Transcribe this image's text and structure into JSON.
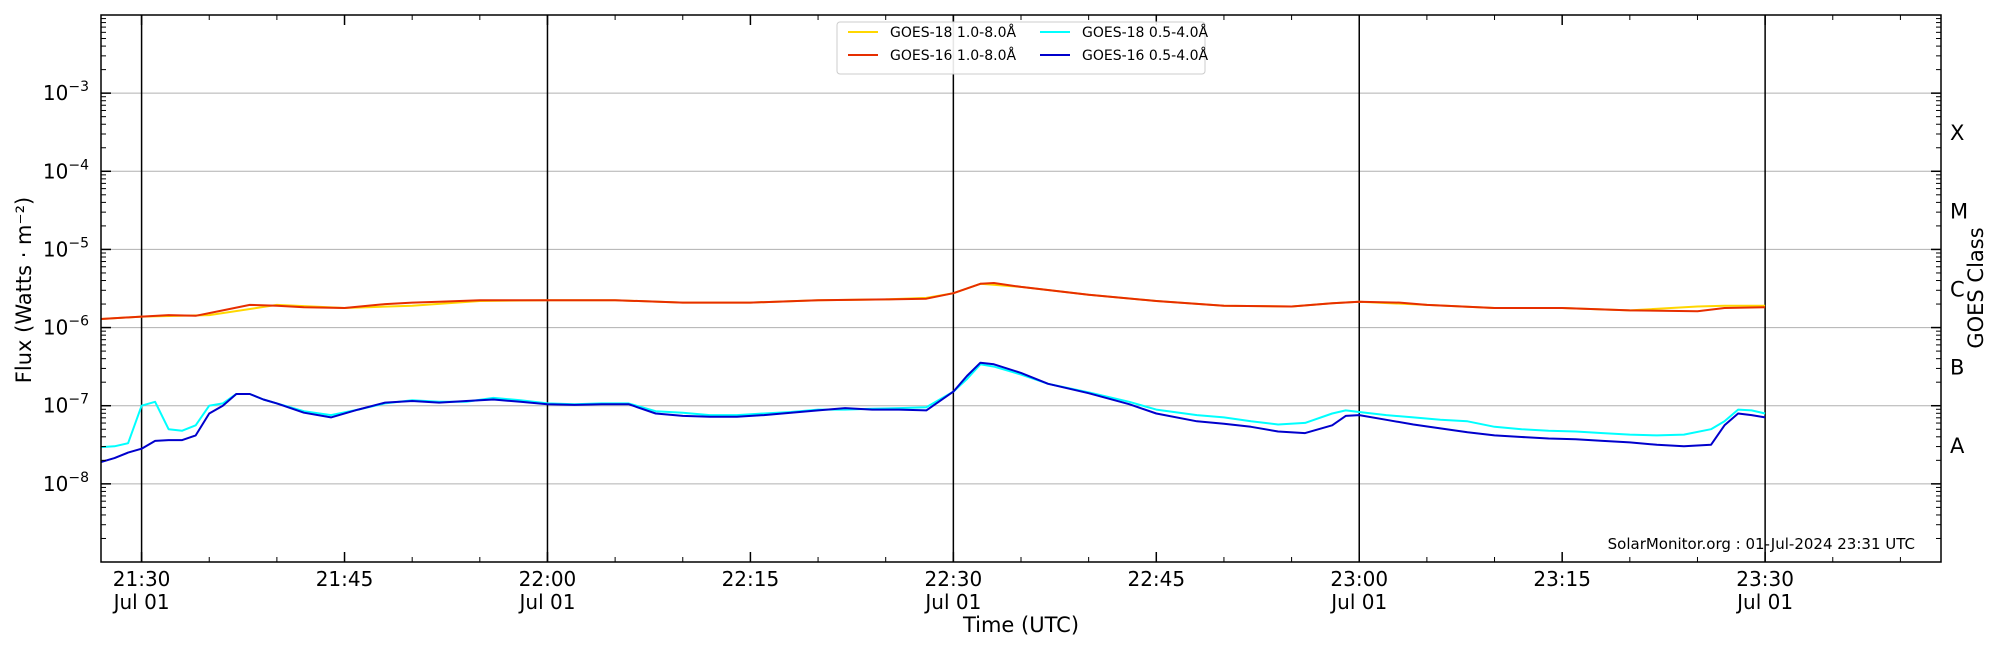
{
  "chart_data": {
    "type": "line",
    "xlabel": "Time (UTC)",
    "ylabel": "Flux (Watts · m⁻²)",
    "y2label": "GOES Class",
    "y_scale": "log",
    "ylim": [
      1e-09,
      0.01
    ],
    "x_range_minutes": [
      "21:27",
      "23:40"
    ],
    "grid": "horizontal",
    "legend_position": "top-center",
    "x_ticks": [
      {
        "time": "21:30",
        "label": "21:30",
        "sublabel": "Jul 01",
        "minute": 0
      },
      {
        "time": "21:45",
        "label": "21:45",
        "sublabel": "",
        "minute": 15
      },
      {
        "time": "22:00",
        "label": "22:00",
        "sublabel": "Jul 01",
        "minute": 30
      },
      {
        "time": "22:15",
        "label": "22:15",
        "sublabel": "",
        "minute": 45
      },
      {
        "time": "22:30",
        "label": "22:30",
        "sublabel": "Jul 01",
        "minute": 60
      },
      {
        "time": "22:45",
        "label": "22:45",
        "sublabel": "",
        "minute": 75
      },
      {
        "time": "23:00",
        "label": "23:00",
        "sublabel": "Jul 01",
        "minute": 90
      },
      {
        "time": "23:15",
        "label": "23:15",
        "sublabel": "",
        "minute": 105
      },
      {
        "time": "23:30",
        "label": "23:30",
        "sublabel": "Jul 01",
        "minute": 120
      }
    ],
    "y_ticks": [
      {
        "exp": -8,
        "label": "10",
        "sup": "−8"
      },
      {
        "exp": -7,
        "label": "10",
        "sup": "−7"
      },
      {
        "exp": -6,
        "label": "10",
        "sup": "−6"
      },
      {
        "exp": -5,
        "label": "10",
        "sup": "−5"
      },
      {
        "exp": -4,
        "label": "10",
        "sup": "−4"
      },
      {
        "exp": -3,
        "label": "10",
        "sup": "−3"
      }
    ],
    "goes_classes": [
      {
        "label": "A",
        "exp": -7.5
      },
      {
        "label": "B",
        "exp": -6.5
      },
      {
        "label": "C",
        "exp": -5.5
      },
      {
        "label": "M",
        "exp": -4.5
      },
      {
        "label": "X",
        "exp": -3.5
      }
    ],
    "vertical_markers_time": [
      "21:30",
      "22:00",
      "22:30",
      "23:00",
      "23:30"
    ],
    "series": [
      {
        "name": "GOES-18 1.0-8.0Å",
        "color": "#ffd700",
        "x_minutes": [
          -3,
          0,
          5,
          10,
          15,
          20,
          25,
          30,
          35,
          40,
          45,
          50,
          55,
          58,
          60,
          62,
          65,
          70,
          75,
          80,
          85,
          88,
          90,
          95,
          100,
          105,
          110,
          115,
          117,
          120
        ],
        "log_values": [
          -5.89,
          -5.86,
          -5.84,
          -5.71,
          -5.75,
          -5.72,
          -5.66,
          -5.65,
          -5.65,
          -5.68,
          -5.68,
          -5.65,
          -5.64,
          -5.62,
          -5.56,
          -5.44,
          -5.48,
          -5.58,
          -5.66,
          -5.72,
          -5.73,
          -5.69,
          -5.67,
          -5.71,
          -5.75,
          -5.75,
          -5.78,
          -5.73,
          -5.72,
          -5.72
        ]
      },
      {
        "name": "GOES-16 1.0-8.0Å",
        "color": "#e62e00",
        "x_minutes": [
          -3,
          0,
          2,
          4,
          6,
          8,
          10,
          12,
          15,
          18,
          20,
          22,
          25,
          30,
          35,
          40,
          45,
          50,
          55,
          58,
          60,
          62,
          63,
          65,
          70,
          75,
          80,
          85,
          88,
          90,
          93,
          95,
          100,
          105,
          110,
          115,
          117,
          120
        ],
        "log_values": [
          -5.89,
          -5.86,
          -5.84,
          -5.85,
          -5.78,
          -5.71,
          -5.72,
          -5.74,
          -5.75,
          -5.7,
          -5.68,
          -5.67,
          -5.65,
          -5.65,
          -5.65,
          -5.68,
          -5.68,
          -5.65,
          -5.64,
          -5.63,
          -5.56,
          -5.44,
          -5.43,
          -5.48,
          -5.58,
          -5.66,
          -5.72,
          -5.73,
          -5.69,
          -5.67,
          -5.68,
          -5.71,
          -5.75,
          -5.75,
          -5.78,
          -5.79,
          -5.75,
          -5.74
        ]
      },
      {
        "name": "GOES-18 0.5-4.0Å",
        "color": "#00ffff",
        "x_minutes": [
          -3,
          -2,
          -1,
          0,
          1,
          2,
          3,
          4,
          5,
          6,
          7,
          8,
          9,
          10,
          12,
          14,
          16,
          18,
          20,
          22,
          24,
          26,
          28,
          30,
          32,
          34,
          36,
          38,
          40,
          42,
          44,
          46,
          48,
          50,
          52,
          54,
          56,
          58,
          60,
          61,
          62,
          63,
          65,
          67,
          70,
          73,
          75,
          78,
          80,
          82,
          84,
          86,
          88,
          89,
          90,
          92,
          94,
          96,
          98,
          100,
          102,
          104,
          106,
          108,
          110,
          112,
          114,
          116,
          117,
          118,
          119,
          120
        ],
        "log_values": [
          -7.53,
          -7.52,
          -7.48,
          -7.0,
          -6.95,
          -7.3,
          -7.32,
          -7.25,
          -7.0,
          -6.97,
          -6.85,
          -6.85,
          -6.92,
          -6.97,
          -7.07,
          -7.12,
          -7.05,
          -6.97,
          -6.93,
          -6.95,
          -6.95,
          -6.9,
          -6.93,
          -6.97,
          -6.98,
          -6.97,
          -6.97,
          -7.07,
          -7.09,
          -7.12,
          -7.12,
          -7.1,
          -7.08,
          -7.05,
          -7.05,
          -7.04,
          -7.03,
          -7.02,
          -6.82,
          -6.66,
          -6.47,
          -6.5,
          -6.6,
          -6.72,
          -6.83,
          -6.95,
          -7.05,
          -7.12,
          -7.15,
          -7.2,
          -7.24,
          -7.22,
          -7.1,
          -7.06,
          -7.08,
          -7.12,
          -7.15,
          -7.18,
          -7.2,
          -7.27,
          -7.3,
          -7.32,
          -7.33,
          -7.35,
          -7.37,
          -7.38,
          -7.37,
          -7.3,
          -7.2,
          -7.05,
          -7.06,
          -7.1
        ]
      },
      {
        "name": "GOES-16 0.5-4.0Å",
        "color": "#0000cc",
        "x_minutes": [
          -3,
          -2,
          -1,
          0,
          1,
          2,
          3,
          4,
          5,
          6,
          7,
          8,
          9,
          10,
          12,
          14,
          16,
          18,
          20,
          22,
          24,
          26,
          28,
          30,
          32,
          34,
          36,
          38,
          40,
          42,
          44,
          46,
          48,
          50,
          52,
          54,
          56,
          58,
          60,
          61,
          62,
          63,
          65,
          67,
          70,
          73,
          75,
          78,
          80,
          82,
          84,
          86,
          88,
          89,
          90,
          92,
          94,
          96,
          98,
          100,
          102,
          104,
          106,
          108,
          110,
          112,
          114,
          116,
          117,
          118,
          119,
          120
        ],
        "log_values": [
          -7.72,
          -7.67,
          -7.6,
          -7.55,
          -7.45,
          -7.44,
          -7.44,
          -7.38,
          -7.1,
          -7.0,
          -6.85,
          -6.85,
          -6.92,
          -6.97,
          -7.09,
          -7.15,
          -7.05,
          -6.96,
          -6.94,
          -6.96,
          -6.94,
          -6.92,
          -6.95,
          -6.98,
          -6.99,
          -6.98,
          -6.98,
          -7.1,
          -7.13,
          -7.14,
          -7.14,
          -7.12,
          -7.09,
          -7.06,
          -7.03,
          -7.05,
          -7.05,
          -7.06,
          -6.82,
          -6.62,
          -6.45,
          -6.47,
          -6.58,
          -6.72,
          -6.84,
          -6.98,
          -7.1,
          -7.2,
          -7.23,
          -7.27,
          -7.33,
          -7.35,
          -7.25,
          -7.13,
          -7.12,
          -7.18,
          -7.24,
          -7.29,
          -7.34,
          -7.38,
          -7.4,
          -7.42,
          -7.43,
          -7.45,
          -7.47,
          -7.5,
          -7.52,
          -7.5,
          -7.25,
          -7.1,
          -7.12,
          -7.15
        ]
      }
    ],
    "annotation": "SolarMonitor.org : 01-Jul-2024 23:31 UTC"
  }
}
